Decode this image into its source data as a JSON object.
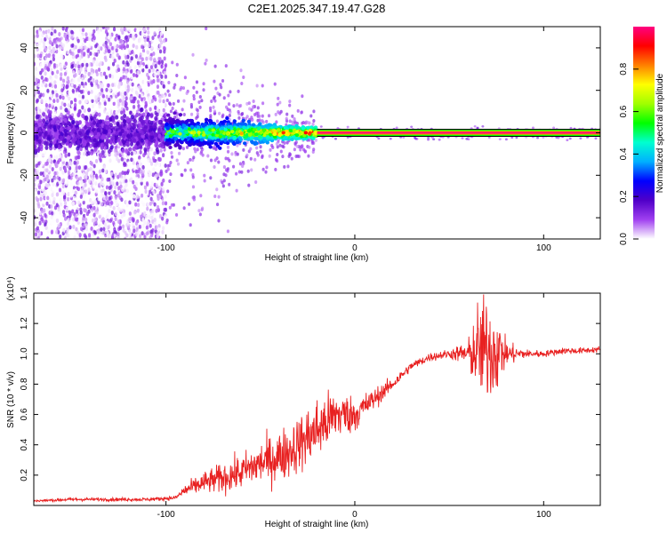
{
  "title": "C2E1.2025.347.19.47.G28",
  "chart_data": [
    {
      "type": "heatmap",
      "xlabel": "Height of straight line (km)",
      "ylabel": "Frequency (Hz)",
      "xlim": [
        -170,
        130
      ],
      "ylim": [
        -50,
        50
      ],
      "xticks": [
        -100,
        0,
        100
      ],
      "xtick_labels": [
        "-100",
        "0",
        "100"
      ],
      "yticks": [
        -40,
        -20,
        0,
        20,
        40
      ],
      "ytick_labels": [
        "-40",
        "-20",
        "0",
        "20",
        "40"
      ],
      "colorbar": {
        "label": "Normalized spectral amplitude",
        "range": [
          0,
          1
        ],
        "ticks": [
          0.0,
          0.2,
          0.4,
          0.6,
          0.8
        ],
        "tick_labels": [
          "0.0",
          "0.2",
          "0.4",
          "0.6",
          "0.8"
        ],
        "colormap": [
          "#ffffff",
          "#a040f0",
          "#5000c8",
          "#0000ff",
          "#00b0ff",
          "#00ffd0",
          "#00ff00",
          "#a0ff00",
          "#ffff00",
          "#ff8000",
          "#ff0000",
          "#ff0080"
        ]
      },
      "signal": {
        "scatter_region_x": [
          -170,
          -100
        ],
        "scatter_freq_span": [
          -50,
          50
        ],
        "band_region_x": [
          -100,
          -20
        ],
        "band_halfwidth_hz": [
          6,
          2
        ],
        "line_region_x": [
          -20,
          130
        ],
        "line_freq_hz": 0
      }
    },
    {
      "type": "line",
      "xlabel": "Height of straight line (km)",
      "ylabel": "SNR (10 * v/v)",
      "scale_label": "(x10⁴)",
      "xlim": [
        -170,
        130
      ],
      "ylim": [
        0,
        1.4
      ],
      "xticks": [
        -100,
        0,
        100
      ],
      "xtick_labels": [
        "-100",
        "0",
        "100"
      ],
      "yticks": [
        0.2,
        0.4,
        0.6,
        0.8,
        1.0,
        1.2,
        1.4
      ],
      "ytick_labels": [
        "0.2",
        "0.4",
        "0.6",
        "0.8",
        "1.0",
        "1.2",
        "1.4"
      ],
      "color": "#e82020",
      "series": [
        {
          "name": "SNR",
          "x": [
            -170,
            -150,
            -130,
            -110,
            -95,
            -90,
            -80,
            -70,
            -60,
            -50,
            -40,
            -30,
            -20,
            -10,
            0,
            10,
            20,
            30,
            40,
            50,
            60,
            65,
            70,
            75,
            80,
            90,
            100,
            110,
            120,
            130
          ],
          "y": [
            0.03,
            0.04,
            0.04,
            0.04,
            0.05,
            0.1,
            0.15,
            0.18,
            0.22,
            0.28,
            0.32,
            0.4,
            0.5,
            0.6,
            0.6,
            0.7,
            0.8,
            0.92,
            0.98,
            1.0,
            1.0,
            1.02,
            1.03,
            1.02,
            1.0,
            1.0,
            1.0,
            1.02,
            1.02,
            1.03
          ],
          "noise": [
            0.005,
            0.008,
            0.008,
            0.008,
            0.01,
            0.03,
            0.05,
            0.07,
            0.08,
            0.1,
            0.12,
            0.13,
            0.15,
            0.12,
            0.08,
            0.05,
            0.03,
            0.02,
            0.02,
            0.02,
            0.06,
            0.22,
            0.25,
            0.2,
            0.06,
            0.02,
            0.015,
            0.015,
            0.015,
            0.015
          ]
        }
      ]
    }
  ]
}
